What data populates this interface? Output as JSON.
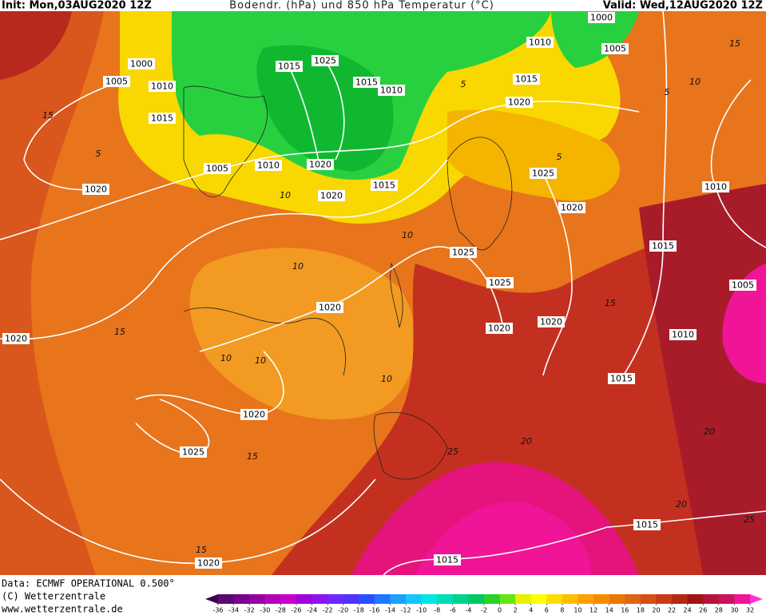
{
  "header": {
    "init": "Init: Mon,03AUG2020 12Z",
    "title": "Bodendr. (hPa) und 850 hPa Temperatur (°C)",
    "valid": "Valid: Wed,12AUG2020 12Z"
  },
  "isobar_labels": [
    1000,
    1005,
    1010,
    1015,
    1005,
    1010,
    1020,
    1020,
    1015,
    1025,
    1015,
    1010,
    1015,
    1020,
    1000,
    1010,
    1005,
    1015,
    1020,
    1025,
    1010,
    1020,
    1015,
    1025,
    1025,
    1005,
    1020,
    1020,
    1020,
    1010,
    1015,
    1020,
    1020,
    1025,
    1015,
    1015,
    1020
  ],
  "temperature_labels": [
    15,
    15,
    10,
    5,
    5,
    5,
    5,
    10,
    10,
    10,
    10,
    10,
    10,
    15,
    15,
    15,
    20,
    20,
    25,
    20,
    25,
    15
  ],
  "footer": {
    "data": "Data: ECMWF OPERATIONAL 0.500°",
    "copyright": "(C) Wetterzentrale",
    "url": "www.wetterzentrale.de"
  },
  "legend": {
    "ticks": [
      -36,
      -34,
      -32,
      -30,
      -28,
      -26,
      -24,
      -22,
      -20,
      -18,
      -16,
      -14,
      -12,
      -10,
      -8,
      -6,
      -4,
      -2,
      0,
      2,
      4,
      6,
      8,
      10,
      12,
      14,
      16,
      18,
      20,
      22,
      24,
      26,
      28,
      30,
      32
    ],
    "colors": [
      "#3c0050",
      "#5a0a6e",
      "#78008c",
      "#9600a0",
      "#b400b4",
      "#c800c8",
      "#a000dc",
      "#8c14f0",
      "#6e28ff",
      "#5032ff",
      "#2850ff",
      "#1e78ff",
      "#1ea0ff",
      "#14c8ff",
      "#00e6e6",
      "#00dcb4",
      "#00d28c",
      "#00c864",
      "#28d228",
      "#64e614",
      "#e6f000",
      "#ffff00",
      "#ffdc00",
      "#ffbe00",
      "#ffa000",
      "#f58c00",
      "#eb7800",
      "#e16414",
      "#d25014",
      "#c83c14",
      "#b42814",
      "#a01414",
      "#b4143c",
      "#c8145a",
      "#f01496",
      "#ff32dc"
    ]
  }
}
